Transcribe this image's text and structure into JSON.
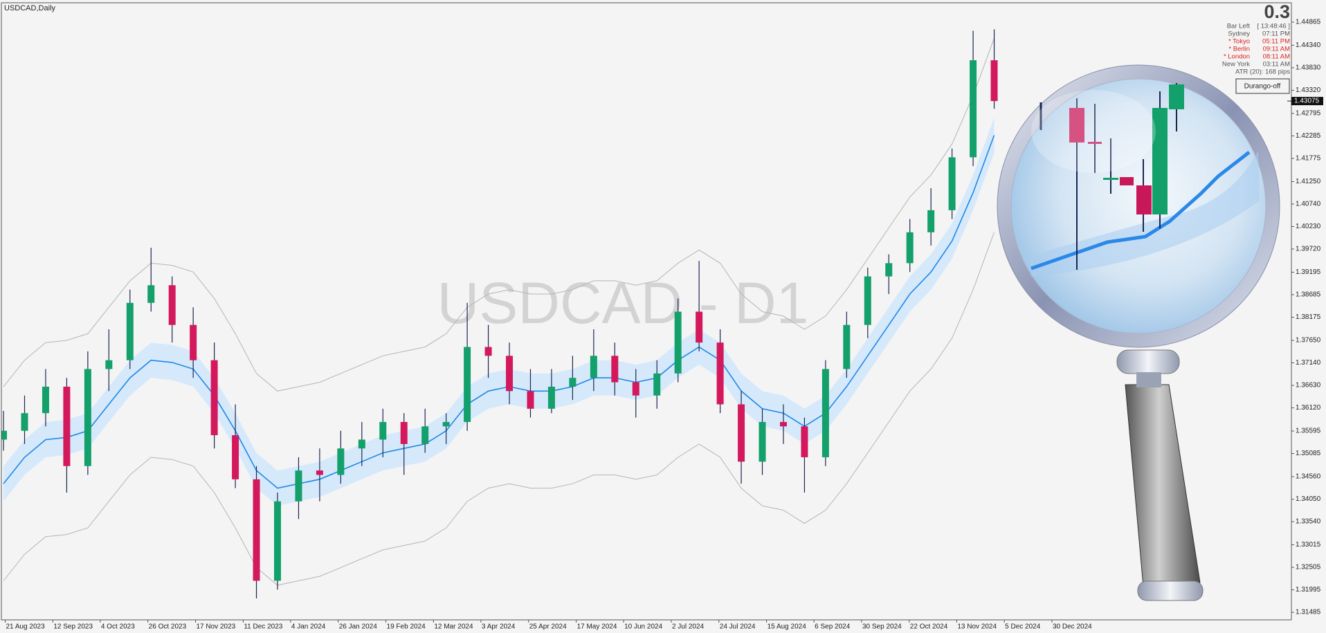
{
  "chart_data": {
    "type": "candlestick",
    "title": "USDCAD,Daily",
    "watermark": "USDCAD - D1",
    "up_color": "#13a06b",
    "down_color": "#d3195c",
    "open": [
      1.354,
      1.356,
      1.36,
      1.366,
      1.348,
      1.37,
      1.372,
      1.385,
      1.389,
      1.38,
      1.372,
      1.355,
      1.345,
      1.322,
      1.34,
      1.347,
      1.346,
      1.352,
      1.354,
      1.358,
      1.353,
      1.357,
      1.358,
      1.375,
      1.373,
      1.365,
      1.361,
      1.366,
      1.368,
      1.373,
      1.367,
      1.364,
      1.369,
      1.383,
      1.376,
      1.362,
      1.349,
      1.358,
      1.357,
      1.35,
      1.37,
      1.38,
      1.391,
      1.394,
      1.401,
      1.406,
      1.418,
      1.44
    ],
    "high": [
      1.3605,
      1.364,
      1.37,
      1.368,
      1.374,
      1.379,
      1.388,
      1.3975,
      1.391,
      1.384,
      1.376,
      1.362,
      1.348,
      1.342,
      1.35,
      1.352,
      1.356,
      1.358,
      1.361,
      1.36,
      1.361,
      1.36,
      1.385,
      1.38,
      1.376,
      1.37,
      1.37,
      1.373,
      1.379,
      1.376,
      1.37,
      1.372,
      1.386,
      1.3945,
      1.379,
      1.365,
      1.361,
      1.362,
      1.359,
      1.372,
      1.383,
      1.393,
      1.396,
      1.404,
      1.411,
      1.42,
      1.4467,
      1.447
    ],
    "low": [
      1.3515,
      1.353,
      1.357,
      1.342,
      1.346,
      1.365,
      1.37,
      1.383,
      1.376,
      1.368,
      1.352,
      1.343,
      1.318,
      1.32,
      1.336,
      1.34,
      1.344,
      1.348,
      1.35,
      1.346,
      1.351,
      1.353,
      1.356,
      1.368,
      1.362,
      1.359,
      1.36,
      1.363,
      1.365,
      1.364,
      1.359,
      1.361,
      1.367,
      1.374,
      1.36,
      1.344,
      1.346,
      1.353,
      1.342,
      1.348,
      1.368,
      1.377,
      1.387,
      1.392,
      1.398,
      1.404,
      1.416,
      1.429
    ],
    "close": [
      1.356,
      1.36,
      1.366,
      1.348,
      1.37,
      1.372,
      1.385,
      1.389,
      1.38,
      1.372,
      1.355,
      1.345,
      1.322,
      1.34,
      1.347,
      1.346,
      1.352,
      1.354,
      1.358,
      1.353,
      1.357,
      1.358,
      1.375,
      1.373,
      1.365,
      1.361,
      1.366,
      1.368,
      1.373,
      1.367,
      1.364,
      1.369,
      1.383,
      1.376,
      1.362,
      1.349,
      1.358,
      1.357,
      1.35,
      1.37,
      1.38,
      1.391,
      1.394,
      1.401,
      1.406,
      1.418,
      1.44,
      1.43075
    ],
    "band": {
      "color": "#d6e9fb",
      "upper": [
        1.348,
        1.354,
        1.358,
        1.3585,
        1.36,
        1.366,
        1.372,
        1.376,
        1.3755,
        1.374,
        1.368,
        1.36,
        1.351,
        1.347,
        1.348,
        1.349,
        1.351,
        1.353,
        1.355,
        1.356,
        1.357,
        1.36,
        1.366,
        1.369,
        1.37,
        1.369,
        1.369,
        1.37,
        1.372,
        1.372,
        1.371,
        1.372,
        1.376,
        1.379,
        1.376,
        1.369,
        1.365,
        1.364,
        1.361,
        1.364,
        1.37,
        1.377,
        1.384,
        1.391,
        1.396,
        1.403,
        1.414,
        1.427
      ],
      "lower": [
        1.34,
        1.346,
        1.35,
        1.3505,
        1.352,
        1.358,
        1.364,
        1.368,
        1.3675,
        1.366,
        1.36,
        1.352,
        1.343,
        1.339,
        1.34,
        1.341,
        1.343,
        1.345,
        1.347,
        1.348,
        1.349,
        1.352,
        1.358,
        1.361,
        1.362,
        1.361,
        1.361,
        1.362,
        1.364,
        1.364,
        1.363,
        1.364,
        1.368,
        1.371,
        1.368,
        1.361,
        1.357,
        1.356,
        1.353,
        1.356,
        1.362,
        1.369,
        1.376,
        1.383,
        1.388,
        1.395,
        1.406,
        1.419
      ]
    },
    "overlays": [
      {
        "color": "#1e88e5",
        "width": 1.6,
        "values": [
          1.344,
          1.35,
          1.354,
          1.3545,
          1.356,
          1.362,
          1.368,
          1.372,
          1.3715,
          1.37,
          1.364,
          1.356,
          1.347,
          1.343,
          1.344,
          1.345,
          1.347,
          1.349,
          1.351,
          1.352,
          1.353,
          1.356,
          1.362,
          1.365,
          1.366,
          1.365,
          1.365,
          1.366,
          1.368,
          1.368,
          1.367,
          1.368,
          1.372,
          1.375,
          1.372,
          1.365,
          1.361,
          1.36,
          1.357,
          1.36,
          1.366,
          1.373,
          1.38,
          1.387,
          1.392,
          1.399,
          1.41,
          1.423
        ]
      },
      {
        "color": "#b4b4b4",
        "width": 1,
        "values": [
          1.366,
          1.372,
          1.376,
          1.3765,
          1.378,
          1.384,
          1.39,
          1.394,
          1.3935,
          1.392,
          1.386,
          1.378,
          1.369,
          1.365,
          1.366,
          1.367,
          1.369,
          1.371,
          1.373,
          1.374,
          1.375,
          1.378,
          1.384,
          1.387,
          1.388,
          1.387,
          1.387,
          1.388,
          1.39,
          1.39,
          1.389,
          1.39,
          1.394,
          1.397,
          1.394,
          1.387,
          1.383,
          1.382,
          1.379,
          1.382,
          1.388,
          1.395,
          1.402,
          1.409,
          1.414,
          1.421,
          1.432,
          1.445
        ]
      },
      {
        "color": "#b4b4b4",
        "width": 1,
        "values": [
          1.322,
          1.328,
          1.332,
          1.3325,
          1.334,
          1.34,
          1.346,
          1.35,
          1.3495,
          1.348,
          1.342,
          1.334,
          1.325,
          1.321,
          1.322,
          1.323,
          1.325,
          1.327,
          1.329,
          1.33,
          1.331,
          1.334,
          1.34,
          1.343,
          1.344,
          1.343,
          1.343,
          1.344,
          1.346,
          1.346,
          1.345,
          1.346,
          1.35,
          1.353,
          1.35,
          1.343,
          1.339,
          1.338,
          1.335,
          1.338,
          1.344,
          1.351,
          1.358,
          1.365,
          1.37,
          1.377,
          1.388,
          1.401
        ]
      }
    ],
    "last_price": 1.43075,
    "xlim": [
      -0.1,
      61.1
    ],
    "xticks": [
      {
        "value": 0.08,
        "label": "21 Aug 2023"
      },
      {
        "value": 2.34,
        "label": "12 Sep 2023"
      },
      {
        "value": 4.59,
        "label": "4 Oct 2023"
      },
      {
        "value": 6.85,
        "label": "26 Oct 2023"
      },
      {
        "value": 9.11,
        "label": "17 Nov 2023"
      },
      {
        "value": 11.37,
        "label": "11 Dec 2023"
      },
      {
        "value": 13.62,
        "label": "4 Jan 2024"
      },
      {
        "value": 15.88,
        "label": "26 Jan 2024"
      },
      {
        "value": 18.14,
        "label": "19 Feb 2024"
      },
      {
        "value": 20.4,
        "label": "12 Mar 2024"
      },
      {
        "value": 22.65,
        "label": "3 Apr 2024"
      },
      {
        "value": 24.91,
        "label": "25 Apr 2024"
      },
      {
        "value": 27.17,
        "label": "17 May 2024"
      },
      {
        "value": 29.42,
        "label": "10 Jun 2024"
      },
      {
        "value": 31.68,
        "label": "2 Jul 2024"
      },
      {
        "value": 33.94,
        "label": "24 Jul 2024"
      },
      {
        "value": 36.2,
        "label": "15 Aug 2024"
      },
      {
        "value": 38.45,
        "label": "6 Sep 2024"
      },
      {
        "value": 40.71,
        "label": "30 Sep 2024"
      },
      {
        "value": 42.97,
        "label": "22 Oct 2024"
      },
      {
        "value": 45.22,
        "label": "13 Nov 2024"
      },
      {
        "value": 47.48,
        "label": "5 Dec 2024"
      },
      {
        "value": 49.74,
        "label": "30 Dec 2024"
      }
    ],
    "ylim": [
      1.31314,
      1.45303
    ],
    "yticks": [
      1.44865,
      {
        "value": 1.4434,
        "label": "1.44340"
      },
      {
        "value": 1.4383,
        "label": "1.43830"
      },
      {
        "value": 1.4332,
        "label": "1.43320"
      },
      1.42795,
      1.42285,
      1.41775,
      {
        "value": 1.4125,
        "label": "1.41250"
      },
      {
        "value": 1.4074,
        "label": "1.40740"
      },
      {
        "value": 1.4023,
        "label": "1.40230"
      },
      {
        "value": 1.3972,
        "label": "1.39720"
      },
      1.39195,
      1.38685,
      1.38175,
      {
        "value": 1.3765,
        "label": "1.37650"
      },
      {
        "value": 1.3714,
        "label": "1.37140"
      },
      {
        "value": 1.3663,
        "label": "1.36630"
      },
      {
        "value": 1.3612,
        "label": "1.36120"
      },
      1.35595,
      1.35085,
      {
        "value": 1.3456,
        "label": "1.34560"
      },
      {
        "value": 1.3405,
        "label": "1.34050"
      },
      {
        "value": 1.3354,
        "label": "1.33540"
      },
      1.33015,
      1.32505,
      1.31995,
      1.31485
    ]
  },
  "info_panel": {
    "spread": "0.3",
    "rows": [
      [
        "Bar Left",
        "[ 13:48:46 ]"
      ],
      [
        "Sydney",
        "07:11 PM"
      ],
      [
        "* Tokyo",
        "05:11 PM"
      ],
      [
        "* Berlin",
        "09:11 AM"
      ],
      [
        "* London",
        "08:11 AM"
      ],
      [
        "New York",
        "03:11 AM"
      ]
    ],
    "atr": "ATR (20): 168 pips",
    "button": "Durango-off"
  }
}
